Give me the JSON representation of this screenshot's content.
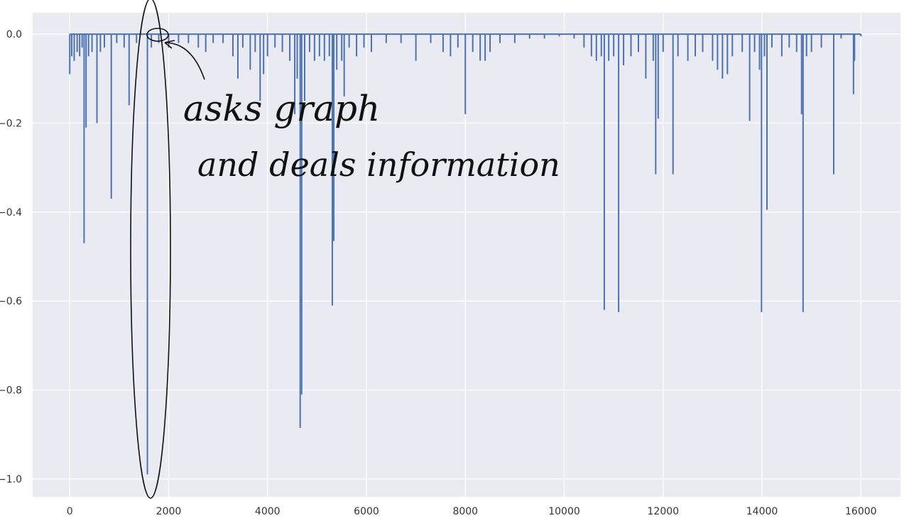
{
  "chart_data": {
    "type": "line",
    "title": "",
    "xlabel": "",
    "ylabel": "",
    "xlim": [
      -750,
      16800
    ],
    "ylim": [
      -1.04,
      0.048
    ],
    "grid": true,
    "x_ticks": [
      0,
      2000,
      4000,
      6000,
      8000,
      10000,
      12000,
      14000,
      16000
    ],
    "y_ticks": [
      0.0,
      -0.2,
      -0.4,
      -0.6,
      -0.8,
      -1.0
    ],
    "x_tick_labels": [
      "0",
      "2000",
      "4000",
      "6000",
      "8000",
      "10000",
      "12000",
      "14000",
      "16000"
    ],
    "y_tick_labels": [
      "0.0",
      "−0.2",
      "−0.4",
      "−0.6",
      "−0.8",
      "−1.0"
    ],
    "series": [
      {
        "x_range": [
          0,
          16000
        ],
        "baseline": 0.0,
        "spikes": [
          {
            "x": 0,
            "y": -0.09
          },
          {
            "x": 40,
            "y": -0.05
          },
          {
            "x": 90,
            "y": -0.06
          },
          {
            "x": 150,
            "y": -0.04
          },
          {
            "x": 200,
            "y": -0.05
          },
          {
            "x": 250,
            "y": -0.03
          },
          {
            "x": 290,
            "y": -0.47
          },
          {
            "x": 330,
            "y": -0.21
          },
          {
            "x": 380,
            "y": -0.05
          },
          {
            "x": 450,
            "y": -0.04
          },
          {
            "x": 550,
            "y": -0.2
          },
          {
            "x": 620,
            "y": -0.04
          },
          {
            "x": 700,
            "y": -0.03
          },
          {
            "x": 840,
            "y": -0.37
          },
          {
            "x": 950,
            "y": -0.02
          },
          {
            "x": 1100,
            "y": -0.03
          },
          {
            "x": 1200,
            "y": -0.16
          },
          {
            "x": 1350,
            "y": -0.02
          },
          {
            "x": 1570,
            "y": -0.99
          },
          {
            "x": 1650,
            "y": -0.03
          },
          {
            "x": 1800,
            "y": -0.02
          },
          {
            "x": 2000,
            "y": -0.03
          },
          {
            "x": 2200,
            "y": -0.02
          },
          {
            "x": 2400,
            "y": -0.02
          },
          {
            "x": 2600,
            "y": -0.03
          },
          {
            "x": 2750,
            "y": -0.04
          },
          {
            "x": 2900,
            "y": -0.02
          },
          {
            "x": 3100,
            "y": -0.02
          },
          {
            "x": 3300,
            "y": -0.05
          },
          {
            "x": 3400,
            "y": -0.1
          },
          {
            "x": 3500,
            "y": -0.03
          },
          {
            "x": 3650,
            "y": -0.08
          },
          {
            "x": 3750,
            "y": -0.04
          },
          {
            "x": 3850,
            "y": -0.15
          },
          {
            "x": 3920,
            "y": -0.09
          },
          {
            "x": 4000,
            "y": -0.05
          },
          {
            "x": 4150,
            "y": -0.03
          },
          {
            "x": 4300,
            "y": -0.04
          },
          {
            "x": 4450,
            "y": -0.06
          },
          {
            "x": 4550,
            "y": -0.18
          },
          {
            "x": 4600,
            "y": -0.1
          },
          {
            "x": 4660,
            "y": -0.885
          },
          {
            "x": 4690,
            "y": -0.81
          },
          {
            "x": 4750,
            "y": -0.15
          },
          {
            "x": 4850,
            "y": -0.04
          },
          {
            "x": 4950,
            "y": -0.06
          },
          {
            "x": 5050,
            "y": -0.05
          },
          {
            "x": 5150,
            "y": -0.06
          },
          {
            "x": 5250,
            "y": -0.05
          },
          {
            "x": 5310,
            "y": -0.61
          },
          {
            "x": 5340,
            "y": -0.465
          },
          {
            "x": 5400,
            "y": -0.08
          },
          {
            "x": 5500,
            "y": -0.06
          },
          {
            "x": 5550,
            "y": -0.14
          },
          {
            "x": 5650,
            "y": -0.03
          },
          {
            "x": 5800,
            "y": -0.05
          },
          {
            "x": 5950,
            "y": -0.03
          },
          {
            "x": 6100,
            "y": -0.04
          },
          {
            "x": 6400,
            "y": -0.02
          },
          {
            "x": 6700,
            "y": -0.02
          },
          {
            "x": 7000,
            "y": -0.06
          },
          {
            "x": 7300,
            "y": -0.02
          },
          {
            "x": 7550,
            "y": -0.04
          },
          {
            "x": 7700,
            "y": -0.05
          },
          {
            "x": 7850,
            "y": -0.03
          },
          {
            "x": 8000,
            "y": -0.18
          },
          {
            "x": 8150,
            "y": -0.04
          },
          {
            "x": 8300,
            "y": -0.06
          },
          {
            "x": 8400,
            "y": -0.06
          },
          {
            "x": 8500,
            "y": -0.04
          },
          {
            "x": 8700,
            "y": -0.02
          },
          {
            "x": 9000,
            "y": -0.02
          },
          {
            "x": 9300,
            "y": -0.01
          },
          {
            "x": 9600,
            "y": -0.01
          },
          {
            "x": 9900,
            "y": -0.005
          },
          {
            "x": 10200,
            "y": -0.01
          },
          {
            "x": 10400,
            "y": -0.03
          },
          {
            "x": 10550,
            "y": -0.05
          },
          {
            "x": 10650,
            "y": -0.06
          },
          {
            "x": 10750,
            "y": -0.05
          },
          {
            "x": 10810,
            "y": -0.62
          },
          {
            "x": 10900,
            "y": -0.06
          },
          {
            "x": 11000,
            "y": -0.05
          },
          {
            "x": 11100,
            "y": -0.625
          },
          {
            "x": 11200,
            "y": -0.07
          },
          {
            "x": 11350,
            "y": -0.05
          },
          {
            "x": 11500,
            "y": -0.04
          },
          {
            "x": 11650,
            "y": -0.1
          },
          {
            "x": 11800,
            "y": -0.06
          },
          {
            "x": 11850,
            "y": -0.315
          },
          {
            "x": 11900,
            "y": -0.19
          },
          {
            "x": 12000,
            "y": -0.04
          },
          {
            "x": 12200,
            "y": -0.315
          },
          {
            "x": 12300,
            "y": -0.05
          },
          {
            "x": 12500,
            "y": -0.06
          },
          {
            "x": 12650,
            "y": -0.05
          },
          {
            "x": 12800,
            "y": -0.04
          },
          {
            "x": 13000,
            "y": -0.06
          },
          {
            "x": 13100,
            "y": -0.08
          },
          {
            "x": 13200,
            "y": -0.1
          },
          {
            "x": 13300,
            "y": -0.09
          },
          {
            "x": 13400,
            "y": -0.05
          },
          {
            "x": 13600,
            "y": -0.04
          },
          {
            "x": 13750,
            "y": -0.195
          },
          {
            "x": 13850,
            "y": -0.04
          },
          {
            "x": 13950,
            "y": -0.08
          },
          {
            "x": 13990,
            "y": -0.625
          },
          {
            "x": 14050,
            "y": -0.05
          },
          {
            "x": 14100,
            "y": -0.395
          },
          {
            "x": 14200,
            "y": -0.03
          },
          {
            "x": 14400,
            "y": -0.05
          },
          {
            "x": 14550,
            "y": -0.03
          },
          {
            "x": 14700,
            "y": -0.04
          },
          {
            "x": 14800,
            "y": -0.18
          },
          {
            "x": 14830,
            "y": -0.625
          },
          {
            "x": 14900,
            "y": -0.05
          },
          {
            "x": 15000,
            "y": -0.04
          },
          {
            "x": 15200,
            "y": -0.03
          },
          {
            "x": 15450,
            "y": -0.315
          },
          {
            "x": 15600,
            "y": -0.01
          },
          {
            "x": 15850,
            "y": -0.135
          },
          {
            "x": 15870,
            "y": -0.06
          },
          {
            "x": 16000,
            "y": -0.005
          }
        ]
      }
    ],
    "line_color": "#4c72b0",
    "background_color": "#eaeaf2",
    "grid_color": "#ffffff"
  },
  "annotation": {
    "line1": "asks graph",
    "line2": "and deals information",
    "ink_color": "#111111"
  }
}
